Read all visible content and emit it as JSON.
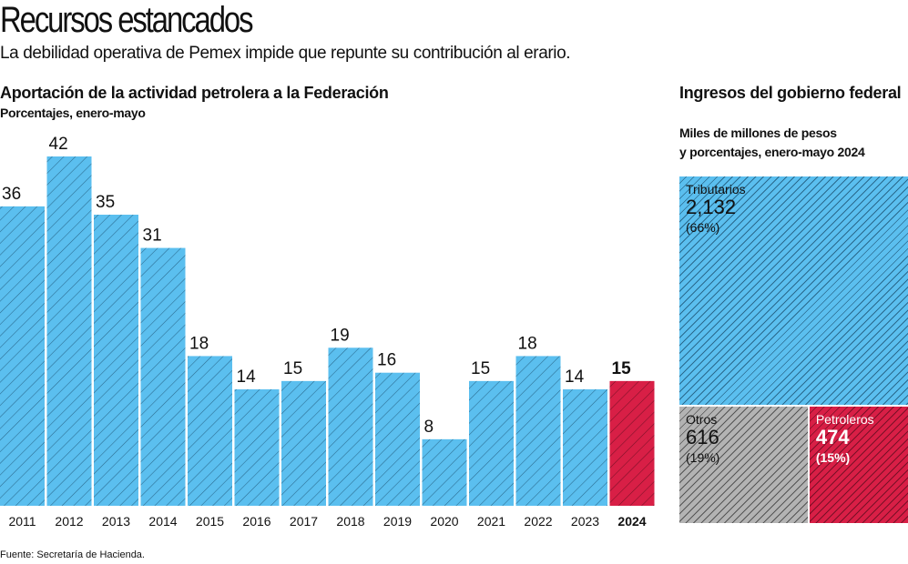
{
  "header": {
    "title": "Recursos estancados",
    "subtitle": "La debilidad operativa de Pemex impide que repunte su contribución al erario."
  },
  "colors": {
    "blue": "#5bbfef",
    "red": "#d81f46",
    "gray": "#b3b3b3",
    "hatch": "#1f4f6a"
  },
  "chart_data": [
    {
      "type": "bar",
      "title": "Aportación de la actividad petrolera a la Federación",
      "subtitle": "Porcentajes, enero-mayo",
      "xlabel": "",
      "ylabel": "",
      "categories": [
        "2011",
        "2012",
        "2013",
        "2014",
        "2015",
        "2016",
        "2017",
        "2018",
        "2019",
        "2020",
        "2021",
        "2022",
        "2023",
        "2024"
      ],
      "values": [
        36,
        42,
        35,
        31,
        18,
        14,
        15,
        19,
        16,
        8,
        15,
        18,
        14,
        15
      ],
      "data_labels": [
        "36",
        "42",
        "35",
        "31",
        "18",
        "14",
        "15",
        "19",
        "16",
        "8",
        "15",
        "18",
        "14",
        "15"
      ],
      "highlight": "2024",
      "ylim": [
        0,
        42
      ],
      "grid": false,
      "legend": "none"
    },
    {
      "type": "treemap",
      "title": "Ingresos del gobierno federal",
      "subtitle_lines": [
        "Miles de millones de pesos",
        "y porcentajes, enero-mayo 2024"
      ],
      "items": [
        {
          "label": "Tributarios",
          "value": 2132,
          "value_text": "2,132",
          "pct_text": "(66%)",
          "color": "blue"
        },
        {
          "label": "Otros",
          "value": 616,
          "value_text": "616",
          "pct_text": "(19%)",
          "color": "gray"
        },
        {
          "label": "Petroleros",
          "value": 474,
          "value_text": "474",
          "pct_text": "(15%)",
          "color": "red"
        }
      ]
    }
  ],
  "footer": {
    "source": "Fuente: Secretaría de Hacienda."
  }
}
